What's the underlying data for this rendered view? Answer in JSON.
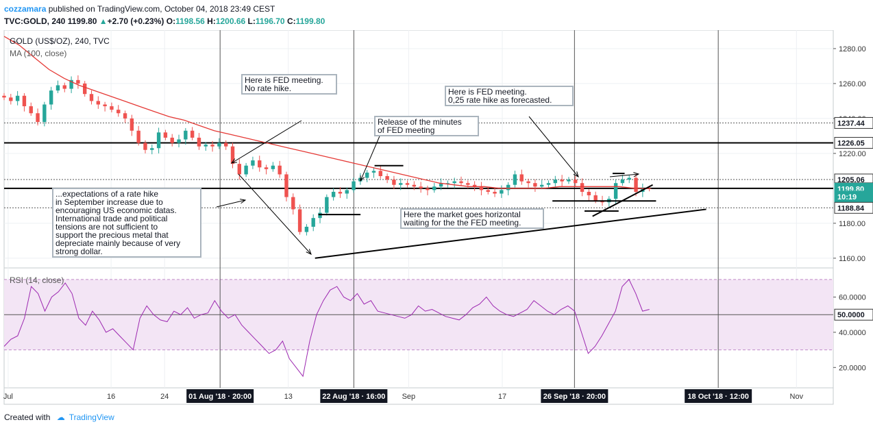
{
  "header": {
    "author": "cozzamara",
    "published": "published on TradingView.com, October 04, 2018 23:49 CEST",
    "symbol": "TVC:GOLD, 240",
    "last": "1199.80",
    "change": "+2.70 (+0.23%)",
    "o_label": "O:",
    "o": "1198.56",
    "h_label": "H:",
    "h": "1200.66",
    "l_label": "L:",
    "l": "1196.70",
    "c_label": "C:",
    "c": "1199.80"
  },
  "legend": {
    "title": "GOLD (US$/OZ), 240, TVC",
    "ma": "MA (100, close)",
    "rsi": "RSI (14, close)"
  },
  "annotations": [
    "Here is FED meeting.\nNo rate hike.",
    "Here is FED meeting.\n0,25 rate hike as forecasted.",
    "Release of the minutes\nof FED meeting",
    "...expectations of a rate hike\nin September increase due to\nencouraging US economic datas.\nInternational trade and political\ntensions are not sufficient to\nsupport the precious metal that\ndepreciate mainly because of very\nstrong dollar.",
    "Here the market goes horizontal\nwaiting for the the FED meeting."
  ],
  "footer": {
    "created": "Created with",
    "brand": "TradingView"
  },
  "colors": {
    "up": "#26a69a",
    "down": "#ef5350",
    "ma": "#e53935",
    "rsi": "#9c27b0",
    "rsi_band": "#f3e5f5"
  },
  "chart_data": {
    "type": "candlestick",
    "price_ticks": [
      "1280.00",
      "1260.00",
      "1240.00",
      "1220.00",
      "1180.00",
      "1160.00"
    ],
    "price_marks": [
      {
        "label": "1237.44",
        "y": 1237.44,
        "style": "dotted"
      },
      {
        "label": "1226.05",
        "y": 1226.05,
        "style": "solid"
      },
      {
        "label": "1205.06",
        "y": 1205.06,
        "style": "dotted"
      },
      {
        "label": "1200.00",
        "y": 1200.0,
        "style": "solid"
      },
      {
        "label": "1199.80",
        "y": 1199.8,
        "style": "last"
      },
      {
        "label": "10:19",
        "y": 1195.3,
        "style": "timer"
      },
      {
        "label": "1188.84",
        "y": 1188.84,
        "style": "dotted"
      }
    ],
    "ylim": [
      1156,
      1289
    ],
    "x_labels": [
      {
        "t": 0.6,
        "label": "Jul"
      },
      {
        "t": 16,
        "label": "16"
      },
      {
        "t": 24,
        "label": "24"
      },
      {
        "t": 42.5,
        "label": "13"
      },
      {
        "t": 60.5,
        "label": "Sep"
      },
      {
        "t": 74.5,
        "label": "17"
      },
      {
        "t": 118.5,
        "label": "Nov"
      }
    ],
    "x_marker_labels": [
      {
        "t": 32.3,
        "label": "01 Aug '18 · 20:00"
      },
      {
        "t": 52.3,
        "label": "22 Aug '18 · 16:00"
      },
      {
        "t": 85.3,
        "label": "26 Sep '18 · 20:00"
      },
      {
        "t": 106.8,
        "label": "18 Oct '18 · 12:00"
      }
    ],
    "xlim": [
      0,
      124
    ],
    "close": [
      1252,
      1250,
      1253,
      1247,
      1243,
      1238,
      1248,
      1256,
      1259,
      1257,
      1262,
      1260,
      1254,
      1250,
      1248,
      1247,
      1245,
      1243,
      1240,
      1233,
      1226,
      1222,
      1223,
      1232,
      1229,
      1226,
      1228,
      1233,
      1229,
      1224,
      1225,
      1224,
      1226,
      1224,
      1214,
      1208,
      1213,
      1216,
      1212,
      1211,
      1213,
      1208,
      1195,
      1188,
      1175,
      1178,
      1183,
      1186,
      1195,
      1198,
      1197,
      1199,
      1204,
      1206,
      1209,
      1210,
      1207,
      1205,
      1202,
      1203,
      1202,
      1201,
      1200,
      1199,
      1201,
      1203,
      1203,
      1204,
      1203,
      1202,
      1201,
      1199,
      1198,
      1197,
      1199,
      1202,
      1208,
      1204,
      1203,
      1201,
      1202,
      1203,
      1205,
      1204,
      1205,
      1203,
      1198,
      1196,
      1193,
      1192,
      1194,
      1203,
      1205,
      1206,
      1198,
      1200,
      1199.8
    ],
    "ma100": [
      1287,
      1282,
      1275,
      1268,
      1263,
      1259,
      1256,
      1253,
      1250,
      1247,
      1244,
      1241,
      1239,
      1236,
      1233,
      1231,
      1229,
      1227,
      1225,
      1223,
      1221,
      1219,
      1217,
      1215,
      1213,
      1211,
      1209,
      1207,
      1205,
      1203,
      1202,
      1201,
      1201,
      1200,
      1200,
      1200,
      1200,
      1201,
      1201,
      1201,
      1201,
      1201,
      1200,
      1199.8
    ],
    "ma100_t": [
      0,
      3,
      6,
      9,
      12,
      15,
      18,
      21,
      24,
      27,
      30,
      33,
      36,
      39,
      42,
      45,
      48,
      51,
      54,
      57,
      60,
      63,
      66,
      69,
      72,
      75,
      78,
      81,
      84,
      87,
      90,
      93,
      96,
      99,
      102,
      105,
      108,
      111,
      114,
      117,
      120,
      123,
      126,
      129
    ],
    "rsi": {
      "ticks": [
        "60.0000",
        "40.0000",
        "20.0000"
      ],
      "current_label": "50.0000",
      "bands": [
        70,
        30
      ],
      "ylim": [
        10,
        75
      ],
      "values": [
        32,
        36,
        38,
        48,
        66,
        62,
        52,
        60,
        63,
        68,
        62,
        48,
        44,
        52,
        47,
        40,
        42,
        38,
        34,
        30,
        48,
        55,
        50,
        47,
        46,
        52,
        50,
        54,
        48,
        50,
        51,
        58,
        52,
        48,
        50,
        44,
        40,
        36,
        32,
        28,
        30,
        35,
        25,
        20,
        15,
        35,
        50,
        58,
        64,
        66,
        60,
        58,
        62,
        56,
        58,
        52,
        51,
        50,
        49,
        48,
        50,
        55,
        52,
        53,
        51,
        49,
        48,
        47,
        50,
        54,
        56,
        60,
        55,
        52,
        50,
        49,
        51,
        53,
        58,
        55,
        52,
        50,
        53,
        55,
        52,
        40,
        28,
        32,
        38,
        45,
        52,
        66,
        70,
        62,
        52,
        53
      ]
    },
    "trendlines": [
      {
        "from": [
          46.5,
          1160
        ],
        "to": [
          105,
          1188
        ]
      },
      {
        "from": [
          88,
          1184
        ],
        "to": [
          97,
          1202
        ]
      }
    ],
    "levels": [
      {
        "from": [
          47,
          1185
        ],
        "to": [
          53.3,
          1185
        ]
      },
      {
        "from": [
          55.4,
          1213
        ],
        "to": [
          59.7,
          1213
        ]
      },
      {
        "from": [
          82,
          1192.8
        ],
        "to": [
          97.5,
          1192.8
        ]
      },
      {
        "from": [
          86.8,
          1187
        ],
        "to": [
          91.9,
          1187
        ]
      },
      {
        "from": [
          91,
          1208.5
        ],
        "to": [
          92.8,
          1208.5
        ]
      }
    ]
  }
}
